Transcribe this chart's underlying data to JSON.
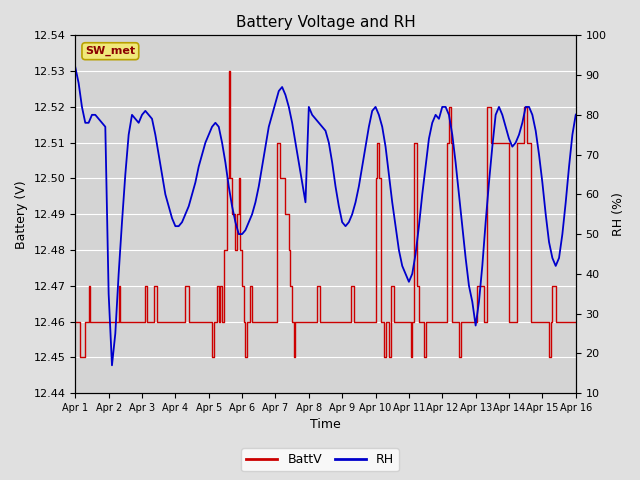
{
  "title": "Battery Voltage and RH",
  "xlabel": "Time",
  "ylabel_left": "Battery (V)",
  "ylabel_right": "RH (%)",
  "label_text": "SW_met",
  "ylim_left": [
    12.44,
    12.54
  ],
  "ylim_right": [
    10,
    100
  ],
  "yticks_left": [
    12.44,
    12.45,
    12.46,
    12.47,
    12.48,
    12.49,
    12.5,
    12.51,
    12.52,
    12.53,
    12.54
  ],
  "yticks_right": [
    10,
    20,
    30,
    40,
    50,
    60,
    70,
    80,
    90,
    100
  ],
  "background_color": "#e0e0e0",
  "plot_bg_color": "#d4d4d4",
  "grid_color": "#ffffff",
  "batt_color": "#cc0000",
  "rh_color": "#0000cc",
  "legend_batt": "BattV",
  "legend_rh": "RH",
  "x_tick_labels": [
    "Apr 1",
    "Apr 2",
    "Apr 3",
    "Apr 4",
    "Apr 5",
    "Apr 6",
    "Apr 7",
    "Apr 8",
    "Apr 9",
    "Apr 10",
    "Apr 11",
    "Apr 12",
    "Apr 13",
    "Apr 14",
    "Apr 15",
    "Apr 16"
  ],
  "n_days": 16,
  "batt_x": [
    0.0,
    0.05,
    0.1,
    0.15,
    0.25,
    0.3,
    0.35,
    0.4,
    0.45,
    0.5,
    0.55,
    0.6,
    1.0,
    1.05,
    1.1,
    1.15,
    1.2,
    1.25,
    1.3,
    1.35,
    2.0,
    2.05,
    2.1,
    2.15,
    2.2,
    2.25,
    2.3,
    2.35,
    2.4,
    2.45,
    3.0,
    3.05,
    3.1,
    3.15,
    3.2,
    3.25,
    3.3,
    3.35,
    3.4,
    3.45,
    4.0,
    4.05,
    4.1,
    4.15,
    4.2,
    4.25,
    4.3,
    4.35,
    4.4,
    4.45,
    4.5,
    4.55,
    4.6,
    4.65,
    4.7,
    4.75,
    4.8,
    4.85,
    4.9,
    4.95,
    5.0,
    5.05,
    5.1,
    5.15,
    5.2,
    5.25,
    5.3,
    5.35,
    6.0,
    6.05,
    6.1,
    6.15,
    6.2,
    6.25,
    6.3,
    6.35,
    6.4,
    6.45,
    6.5,
    6.55,
    6.6,
    6.65,
    7.0,
    7.05,
    7.1,
    7.15,
    7.2,
    7.25,
    7.3,
    7.35,
    7.4,
    7.45,
    8.0,
    8.05,
    8.1,
    8.15,
    8.2,
    8.25,
    8.3,
    8.35,
    8.4,
    8.45,
    9.0,
    9.05,
    9.1,
    9.15,
    9.2,
    9.25,
    9.3,
    9.35,
    9.4,
    9.45,
    9.5,
    9.55,
    9.6,
    9.65,
    10.0,
    10.05,
    10.1,
    10.15,
    10.2,
    10.25,
    10.3,
    10.35,
    10.4,
    10.45,
    10.5,
    11.0,
    11.05,
    11.1,
    11.15,
    11.2,
    11.25,
    11.3,
    11.35,
    11.4,
    11.45,
    11.5,
    11.55,
    12.0,
    12.05,
    12.1,
    12.15,
    12.2,
    12.25,
    12.3,
    12.35,
    12.4,
    12.45,
    13.0,
    13.05,
    13.1,
    13.15,
    13.2,
    13.25,
    13.3,
    13.35,
    13.4,
    13.45,
    13.5,
    13.55,
    13.6,
    13.65,
    14.0,
    14.05,
    14.1,
    14.15,
    14.2,
    14.25,
    14.3,
    14.35,
    14.4,
    14.45,
    15.0,
    15.05,
    15.1,
    15.15,
    15.2,
    15.25,
    15.3,
    15.35,
    15.4,
    15.45
  ],
  "batt_y": [
    12.46,
    12.46,
    12.46,
    12.45,
    12.45,
    12.46,
    12.46,
    12.47,
    12.46,
    12.46,
    12.46,
    12.46,
    12.46,
    12.46,
    12.46,
    12.46,
    12.46,
    12.46,
    12.47,
    12.46,
    12.46,
    12.46,
    12.47,
    12.46,
    12.46,
    12.46,
    12.46,
    12.47,
    12.47,
    12.46,
    12.46,
    12.46,
    12.46,
    12.46,
    12.46,
    12.46,
    12.47,
    12.47,
    12.46,
    12.46,
    12.46,
    12.46,
    12.45,
    12.46,
    12.46,
    12.47,
    12.46,
    12.47,
    12.46,
    12.48,
    12.48,
    12.5,
    12.53,
    12.5,
    12.49,
    12.49,
    12.48,
    12.49,
    12.5,
    12.48,
    12.47,
    12.46,
    12.45,
    12.46,
    12.46,
    12.47,
    12.46,
    12.46,
    12.46,
    12.51,
    12.51,
    12.5,
    12.5,
    12.5,
    12.49,
    12.49,
    12.48,
    12.47,
    12.46,
    12.45,
    12.46,
    12.46,
    12.46,
    12.46,
    12.46,
    12.46,
    12.46,
    12.47,
    12.47,
    12.46,
    12.46,
    12.46,
    12.46,
    12.46,
    12.46,
    12.46,
    12.46,
    12.47,
    12.47,
    12.46,
    12.46,
    12.46,
    12.5,
    12.51,
    12.5,
    12.46,
    12.46,
    12.45,
    12.46,
    12.46,
    12.45,
    12.47,
    12.47,
    12.46,
    12.46,
    12.46,
    12.46,
    12.45,
    12.46,
    12.51,
    12.51,
    12.47,
    12.46,
    12.46,
    12.46,
    12.45,
    12.46,
    12.46,
    12.46,
    12.46,
    12.51,
    12.52,
    12.51,
    12.46,
    12.46,
    12.46,
    12.46,
    12.45,
    12.46,
    12.46,
    12.47,
    12.47,
    12.47,
    12.47,
    12.46,
    12.46,
    12.52,
    12.52,
    12.51,
    12.46,
    12.46,
    12.46,
    12.46,
    12.46,
    12.51,
    12.51,
    12.51,
    12.51,
    12.52,
    12.52,
    12.51,
    12.51,
    12.46,
    12.46,
    12.46,
    12.46,
    12.46,
    12.45,
    12.46,
    12.47,
    12.47,
    12.46,
    12.46,
    12.46,
    12.46,
    12.46,
    12.46,
    12.47,
    12.47,
    12.46,
    12.46,
    12.46,
    12.46
  ],
  "rh_x": [
    0.0,
    0.1,
    0.2,
    0.3,
    0.4,
    0.5,
    0.6,
    0.7,
    0.8,
    0.9,
    1.0,
    1.1,
    1.2,
    1.3,
    1.4,
    1.5,
    1.6,
    1.7,
    1.8,
    1.9,
    2.0,
    2.1,
    2.2,
    2.3,
    2.4,
    2.5,
    2.6,
    2.7,
    2.8,
    2.9,
    3.0,
    3.1,
    3.2,
    3.3,
    3.4,
    3.5,
    3.6,
    3.7,
    3.8,
    3.9,
    4.0,
    4.1,
    4.2,
    4.3,
    4.4,
    4.5,
    4.6,
    4.7,
    4.8,
    4.9,
    5.0,
    5.1,
    5.2,
    5.3,
    5.4,
    5.5,
    5.6,
    5.7,
    5.8,
    5.9,
    6.0,
    6.1,
    6.2,
    6.3,
    6.4,
    6.5,
    6.6,
    6.7,
    6.8,
    6.9,
    7.0,
    7.1,
    7.2,
    7.3,
    7.4,
    7.5,
    7.6,
    7.7,
    7.8,
    7.9,
    8.0,
    8.1,
    8.2,
    8.3,
    8.4,
    8.5,
    8.6,
    8.7,
    8.8,
    8.9,
    9.0,
    9.1,
    9.2,
    9.3,
    9.4,
    9.5,
    9.6,
    9.7,
    9.8,
    9.9,
    10.0,
    10.1,
    10.2,
    10.3,
    10.4,
    10.5,
    10.6,
    10.7,
    10.8,
    10.9,
    11.0,
    11.1,
    11.2,
    11.3,
    11.4,
    11.5,
    11.6,
    11.7,
    11.8,
    11.9,
    12.0,
    12.1,
    12.2,
    12.3,
    12.4,
    12.5,
    12.6,
    12.7,
    12.8,
    12.9,
    13.0,
    13.1,
    13.2,
    13.3,
    13.4,
    13.5,
    13.6,
    13.7,
    13.8,
    13.9,
    14.0,
    14.1,
    14.2,
    14.3,
    14.4,
    14.5,
    14.6,
    14.7,
    14.8,
    14.9,
    15.0,
    15.1,
    15.2,
    15.3,
    15.4,
    15.5,
    15.6,
    15.7,
    15.8,
    15.9
  ],
  "rh_y": [
    92,
    88,
    82,
    78,
    78,
    80,
    80,
    79,
    78,
    77,
    35,
    17,
    25,
    40,
    53,
    65,
    75,
    80,
    79,
    78,
    80,
    81,
    80,
    79,
    75,
    70,
    65,
    60,
    57,
    54,
    52,
    52,
    53,
    55,
    57,
    60,
    63,
    67,
    70,
    73,
    75,
    77,
    78,
    77,
    73,
    68,
    62,
    57,
    53,
    50,
    50,
    51,
    53,
    55,
    58,
    62,
    67,
    72,
    77,
    80,
    83,
    86,
    87,
    85,
    82,
    78,
    73,
    68,
    63,
    58,
    82,
    80,
    79,
    78,
    77,
    76,
    73,
    68,
    62,
    57,
    53,
    52,
    53,
    55,
    58,
    62,
    67,
    72,
    77,
    81,
    82,
    80,
    77,
    72,
    65,
    58,
    52,
    46,
    42,
    40,
    38,
    40,
    45,
    52,
    60,
    67,
    74,
    78,
    80,
    79,
    82,
    82,
    80,
    75,
    68,
    60,
    52,
    44,
    37,
    33,
    27,
    33,
    42,
    53,
    63,
    72,
    80,
    82,
    80,
    77,
    74,
    72,
    73,
    75,
    78,
    82,
    82,
    80,
    76,
    70,
    63,
    55,
    48,
    44,
    42,
    44,
    50,
    58,
    67,
    75,
    80,
    81,
    81,
    80,
    79,
    78,
    80,
    81,
    80,
    79
  ]
}
